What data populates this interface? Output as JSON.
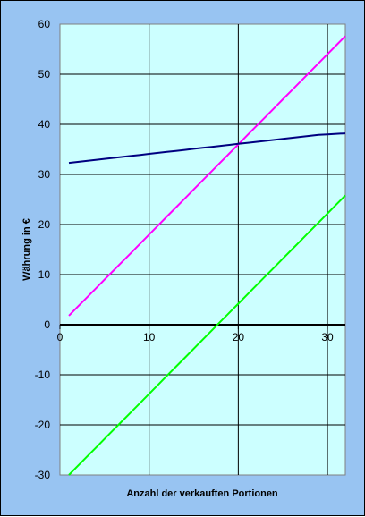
{
  "chart_data": {
    "type": "line",
    "title": "",
    "xlabel": "Anzahl der verkauften Portionen",
    "ylabel": "Währung in €",
    "xlim": [
      0,
      32
    ],
    "ylim": [
      -30,
      60
    ],
    "xticks": [
      0,
      10,
      20,
      30
    ],
    "yticks": [
      -30,
      -20,
      -10,
      0,
      10,
      20,
      30,
      40,
      50,
      60
    ],
    "grid": true,
    "legend": "none",
    "series": [
      {
        "color": "#ff00ff",
        "x": [
          1,
          2,
          3,
          4,
          5,
          6,
          7,
          8,
          9,
          10,
          11,
          12,
          13,
          14,
          15,
          16,
          17,
          18,
          19,
          20,
          21,
          22,
          23,
          24,
          25,
          26,
          27,
          28,
          29,
          30,
          31,
          32
        ],
        "values": [
          1.8,
          3.6,
          5.4,
          7.2,
          9.0,
          10.8,
          12.6,
          14.4,
          16.2,
          18.0,
          19.8,
          21.6,
          23.4,
          25.2,
          27.0,
          28.8,
          30.6,
          32.4,
          34.2,
          36.0,
          37.8,
          39.6,
          41.4,
          43.2,
          45.0,
          46.8,
          48.6,
          50.4,
          52.2,
          54.0,
          55.8,
          57.6
        ]
      },
      {
        "color": "#000080",
        "x": [
          1,
          2,
          3,
          4,
          5,
          6,
          7,
          8,
          9,
          10,
          11,
          12,
          13,
          14,
          15,
          16,
          17,
          18,
          19,
          20,
          21,
          22,
          23,
          24,
          25,
          26,
          27,
          28,
          29,
          30,
          31,
          32
        ],
        "values": [
          32.3,
          32.5,
          32.7,
          32.9,
          33.1,
          33.3,
          33.5,
          33.7,
          33.9,
          34.1,
          34.3,
          34.5,
          34.7,
          34.9,
          35.1,
          35.3,
          35.5,
          35.7,
          35.9,
          36.1,
          36.3,
          36.5,
          36.7,
          36.9,
          37.1,
          37.3,
          37.5,
          37.7,
          37.9,
          38.0,
          38.1,
          38.2
        ]
      },
      {
        "color": "#00ff00",
        "x": [
          1,
          2,
          3,
          4,
          5,
          6,
          7,
          8,
          9,
          10,
          11,
          12,
          13,
          14,
          15,
          16,
          17,
          18,
          19,
          20,
          21,
          22,
          23,
          24,
          25,
          26,
          27,
          28,
          29,
          30,
          31,
          32
        ],
        "values": [
          -30.0,
          -28.2,
          -26.4,
          -24.6,
          -22.8,
          -21.0,
          -19.2,
          -17.4,
          -15.6,
          -13.8,
          -12.0,
          -10.2,
          -8.4,
          -6.6,
          -4.8,
          -3.0,
          -1.2,
          0.6,
          2.4,
          4.2,
          6.0,
          7.8,
          9.6,
          11.4,
          13.2,
          15.0,
          16.8,
          18.6,
          20.4,
          22.2,
          24.0,
          25.8
        ]
      }
    ]
  },
  "colors": {
    "frame_background": "#98c4f2",
    "plot_background": "#ccffff",
    "gridline": "#000000"
  }
}
